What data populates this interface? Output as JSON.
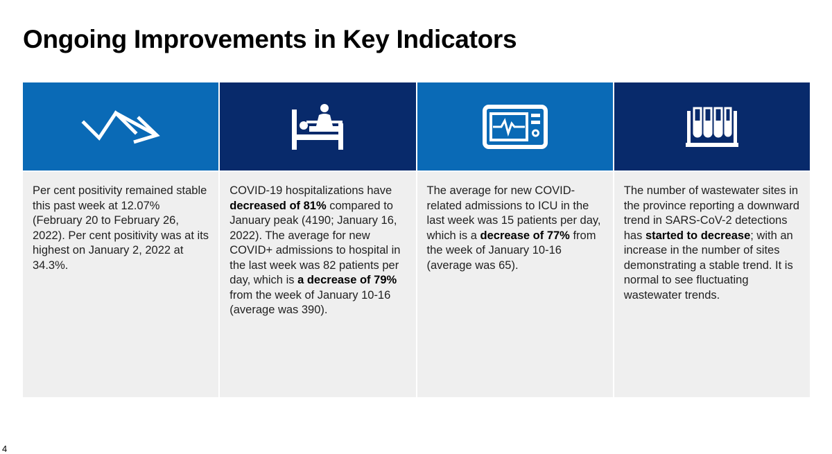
{
  "title": "Ongoing Improvements in Key Indicators",
  "page_number": "4",
  "colors": {
    "light_blue": "#0a6ab6",
    "dark_blue": "#082a6b",
    "panel_bg": "#efefef"
  },
  "panels": [
    {
      "icon": "trend-arrow-icon",
      "segments": [
        {
          "t": "Per cent positivity remained stable this past week at 12.07% (February 20 to February 26, 2022). Per cent positivity was at its highest on January 2, 2022 at 34.3%."
        }
      ]
    },
    {
      "icon": "hospital-bed-icon",
      "segments": [
        {
          "t": "COVID-19 hospitalizations have "
        },
        {
          "t": "decreased of 81%",
          "b": true
        },
        {
          "t": " compared to January peak (4190; January 16, 2022). The average for new COVID+ admissions to hospital in the last week was 82 patients per day, which is "
        },
        {
          "t": "a decrease of 79%",
          "b": true
        },
        {
          "t": " from the week of January 10-16 (average was 390)."
        }
      ]
    },
    {
      "icon": "heart-monitor-icon",
      "segments": [
        {
          "t": "The average for new COVID-related admissions to ICU in the last week was 15 patients per day, which is a "
        },
        {
          "t": "decrease of 77%",
          "b": true
        },
        {
          "t": " from the week of January 10-16 (average was 65)."
        }
      ]
    },
    {
      "icon": "test-tubes-icon",
      "segments": [
        {
          "t": "The number of wastewater sites in the province reporting a downward trend in SARS-CoV-2 detections has "
        },
        {
          "t": "started to decrease",
          "b": true
        },
        {
          "t": "; with an increase in the number of sites demonstrating a stable trend. It is normal to see fluctuating wastewater trends."
        }
      ]
    }
  ]
}
